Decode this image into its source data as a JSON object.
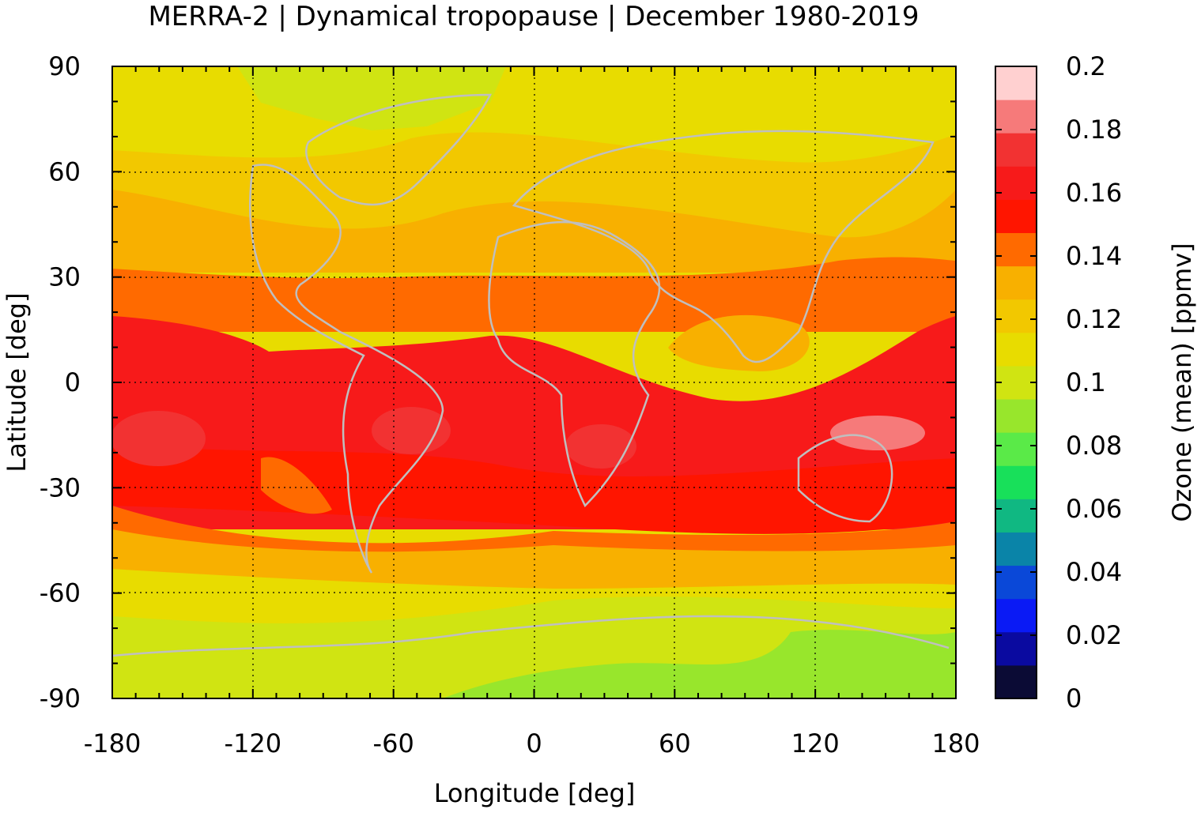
{
  "title": "MERRA-2 | Dynamical tropopause | December 1980-2019",
  "chart_data": {
    "type": "heatmap",
    "title": "MERRA-2 | Dynamical tropopause | December 1980-2019",
    "xlabel": "Longitude [deg]",
    "ylabel": "Latitude [deg]",
    "colorbar_label": "Ozone (mean) [ppmv]",
    "xlim": [
      -180,
      180
    ],
    "ylim": [
      -90,
      90
    ],
    "xticks": [
      "-180",
      "-120",
      "-60",
      "0",
      "60",
      "120",
      "180"
    ],
    "yticks": [
      "90",
      "60",
      "30",
      "0",
      "-30",
      "-60",
      "-90"
    ],
    "colorbar_ticks": [
      "0.2",
      "0.18",
      "0.16",
      "0.14",
      "0.12",
      "0.1",
      "0.08",
      "0.06",
      "0.04",
      "0.02",
      "0"
    ],
    "grid": "dotted",
    "colorbar": {
      "range": [
        0,
        0.2
      ],
      "step": 0.02,
      "colors": [
        "#0b0b35",
        "#0a0aa0",
        "#0a1af5",
        "#0a48d8",
        "#0a84a8",
        "#10b882",
        "#18e05a",
        "#5aea48",
        "#98e62c",
        "#d0e412",
        "#e8dc00",
        "#f2c800",
        "#f8b000",
        "#ff6a00",
        "#ff1500",
        "#f71a1a",
        "#f23232",
        "#f67a7a",
        "#ffd0d0"
      ]
    },
    "latitude_bands": [
      {
        "lat_range": [
          90,
          68
        ],
        "ozone_ppmv": 0.105
      },
      {
        "lat_range": [
          68,
          32
        ],
        "ozone_ppmv": 0.13
      },
      {
        "lat_range": [
          32,
          20
        ],
        "ozone_ppmv": 0.145
      },
      {
        "lat_range": [
          20,
          -5
        ],
        "ozone_ppmv": 0.16
      },
      {
        "lat_range": [
          -5,
          -33
        ],
        "ozone_ppmv": 0.17
      },
      {
        "lat_range": [
          -33,
          -42
        ],
        "ozone_ppmv": 0.16
      },
      {
        "lat_range": [
          -42,
          -55
        ],
        "ozone_ppmv": 0.13
      },
      {
        "lat_range": [
          -55,
          -70
        ],
        "ozone_ppmv": 0.11
      },
      {
        "lat_range": [
          -70,
          -90
        ],
        "ozone_ppmv": 0.095
      }
    ]
  }
}
